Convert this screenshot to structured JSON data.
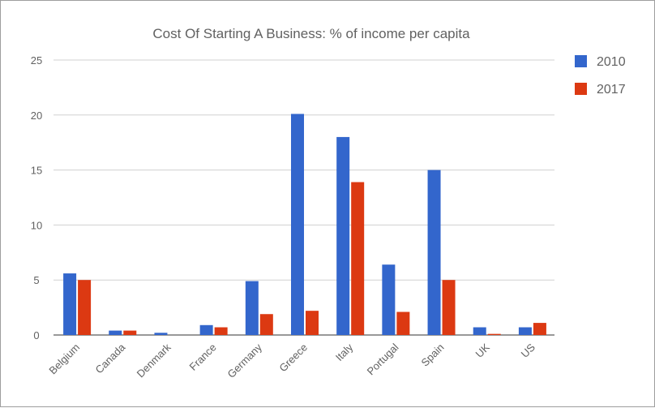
{
  "chart_data": {
    "type": "bar",
    "title": "Cost Of Starting A Business: % of income per capita",
    "xlabel": "",
    "ylabel": "",
    "categories": [
      "Belgium",
      "Canada",
      "Denmark",
      "France",
      "Germany",
      "Greece",
      "Italy",
      "Portugal",
      "Spain",
      "UK",
      "US"
    ],
    "series": [
      {
        "name": "2010",
        "color": "#3366cc",
        "values": [
          5.6,
          0.4,
          0.2,
          0.9,
          4.9,
          20.1,
          18.0,
          6.4,
          15.0,
          0.7,
          0.7
        ]
      },
      {
        "name": "2017",
        "color": "#dc3912",
        "values": [
          5.0,
          0.4,
          0.0,
          0.7,
          1.9,
          2.2,
          13.9,
          2.1,
          5.0,
          0.1,
          1.1
        ]
      }
    ],
    "ylim": [
      0,
      25
    ],
    "yticks": [
      "0",
      "5",
      "10",
      "15",
      "20",
      "25"
    ],
    "grid": true,
    "legend_position": "right"
  }
}
